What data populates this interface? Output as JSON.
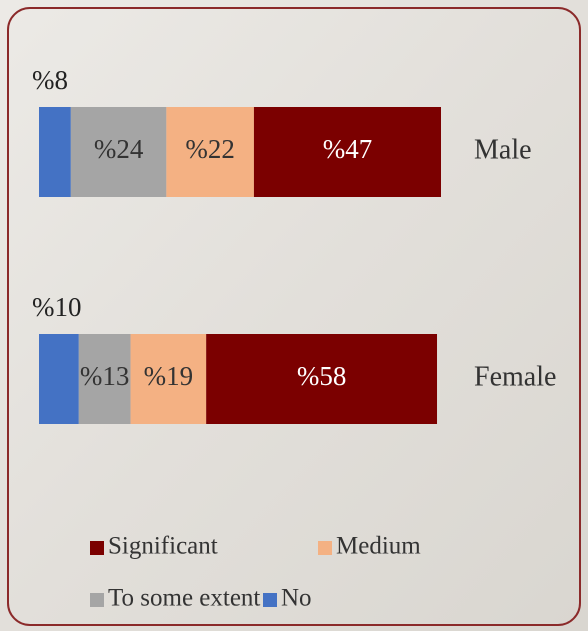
{
  "chart_data": {
    "type": "stacked_barh",
    "categories": [
      "Male",
      "Female"
    ],
    "series": [
      {
        "name": "No",
        "color": "#4472c4",
        "values": [
          8,
          10
        ],
        "value_labels": [
          "%8",
          "%10"
        ]
      },
      {
        "name": "To some extent",
        "color": "#a5a5a5",
        "values": [
          24,
          13
        ],
        "value_labels": [
          "%24",
          "%13"
        ]
      },
      {
        "name": "Medium",
        "color": "#f4b183",
        "values": [
          22,
          19
        ],
        "value_labels": [
          "%22",
          "%19"
        ]
      },
      {
        "name": "Significant",
        "color": "#7b0000",
        "values": [
          47,
          58
        ],
        "value_labels": [
          "%47",
          "%58"
        ]
      }
    ],
    "xlim": [
      0,
      101
    ],
    "legend_order": [
      "Significant",
      "Medium",
      "To some extent",
      "No"
    ]
  }
}
